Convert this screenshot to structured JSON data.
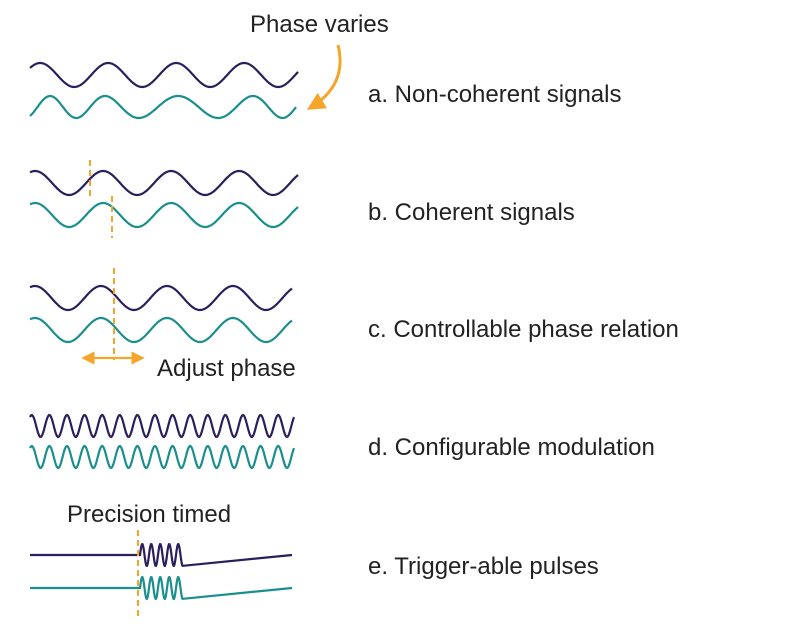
{
  "colors": {
    "navy": "#2a1f5c",
    "teal": "#1a8f8c",
    "accent": "#f4a62a",
    "text": "#222222"
  },
  "annotations": {
    "phase_varies": "Phase varies",
    "adjust_phase": "Adjust phase",
    "precision_timed": "Precision timed"
  },
  "rows": [
    {
      "label": "a. Non-coherent signals"
    },
    {
      "label": "b. Coherent signals"
    },
    {
      "label": "c. Controllable phase relation"
    },
    {
      "label": "d. Configurable modulation"
    },
    {
      "label": "e. Trigger-able pulses"
    }
  ],
  "icons": {
    "curved_arrow": "curved-arrow-icon",
    "double_arrow": "double-headed-arrow-icon"
  }
}
